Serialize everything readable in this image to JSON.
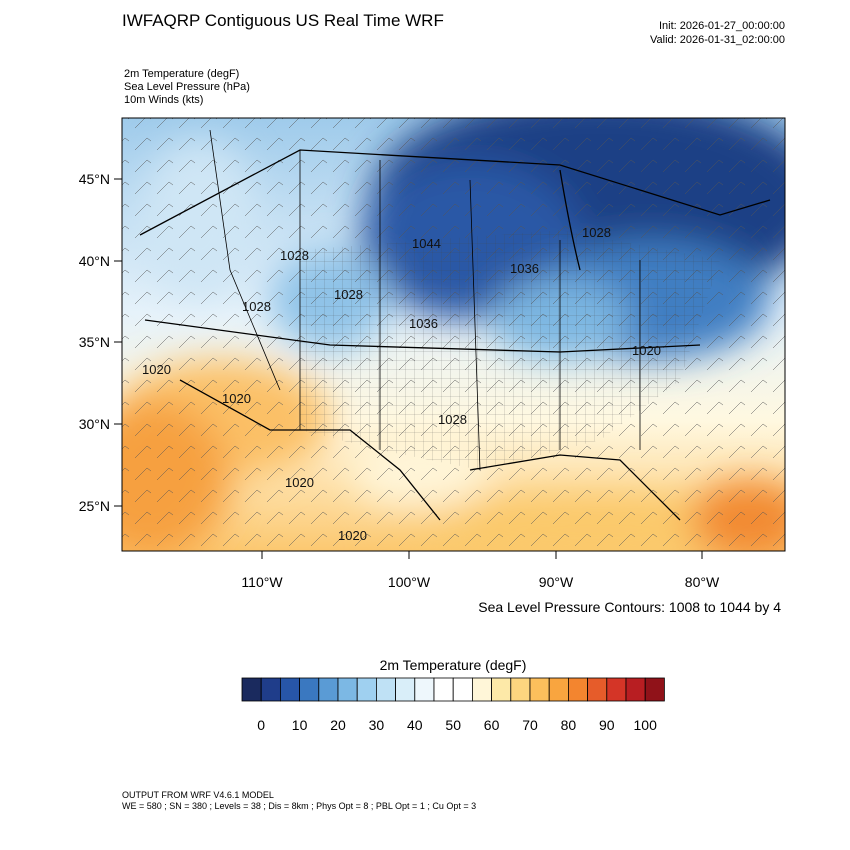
{
  "header": {
    "title": "IWFAQRP Contiguous US Real Time WRF",
    "init": "Init: 2026-01-27_00:00:00",
    "valid": "Valid: 2026-01-31_02:00:00"
  },
  "fields": [
    "2m Temperature   (degF)",
    "Sea Level Pressure   (hPa)",
    "10m Winds   (kts)"
  ],
  "map": {
    "lat_labels": [
      "45°N",
      "40°N",
      "35°N",
      "30°N",
      "25°N"
    ],
    "lon_labels": [
      "110°W",
      "100°W",
      "90°W",
      "80°W"
    ],
    "contour_labels": [
      "1028",
      "1044",
      "1036",
      "1028",
      "1028",
      "1028",
      "1036",
      "1020",
      "1020",
      "1028",
      "1020",
      "1020",
      "1020"
    ],
    "caption": "Sea Level Pressure Contours: 1008 to 1044 by 4"
  },
  "colorbar": {
    "title": "2m Temperature  (degF)",
    "colors": [
      "#1a2a5e",
      "#1f3d8a",
      "#2756a8",
      "#3a78c0",
      "#5a9bd5",
      "#7cb8e4",
      "#9fd0f0",
      "#bfe1f5",
      "#d9eef9",
      "#eef7fc",
      "#ffffff",
      "#ffffff",
      "#fff6d8",
      "#fde9a8",
      "#fdd57f",
      "#fcbf5c",
      "#f9a53f",
      "#f3852f",
      "#e65c2a",
      "#d43527",
      "#b81e22",
      "#901219"
    ],
    "labels": [
      "0",
      "10",
      "20",
      "30",
      "40",
      "50",
      "60",
      "70",
      "80",
      "90",
      "100"
    ]
  },
  "footer": [
    "OUTPUT FROM WRF V4.6.1 MODEL",
    "WE = 580 ; SN = 380 ; Levels = 38 ; Dis = 8km ; Phys Opt = 8 ; PBL Opt = 1 ; Cu Opt = 3"
  ]
}
